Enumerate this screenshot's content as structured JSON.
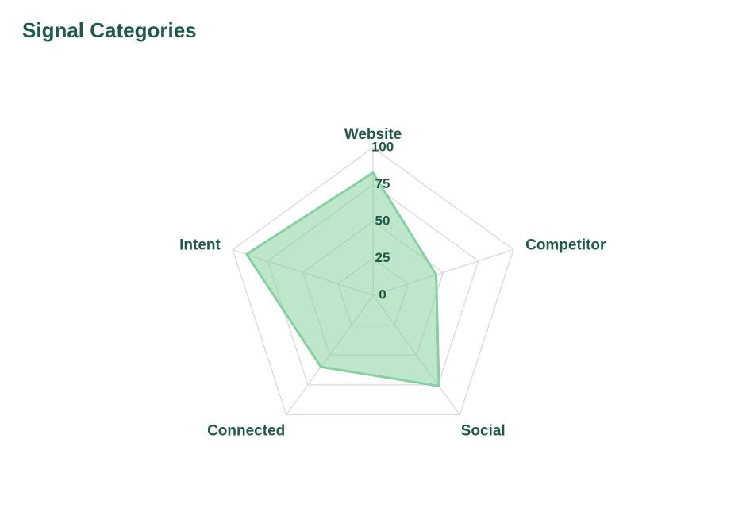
{
  "chart_data": {
    "type": "radar",
    "title": "Signal Categories",
    "categories": [
      "Website",
      "Competitor",
      "Social",
      "Connected",
      "Intent"
    ],
    "values": [
      83,
      45,
      76,
      60,
      90
    ],
    "color": "#86d29e",
    "ylim": [
      0,
      100
    ],
    "yticks": [
      0,
      25,
      50,
      75,
      100
    ],
    "grid": true
  }
}
